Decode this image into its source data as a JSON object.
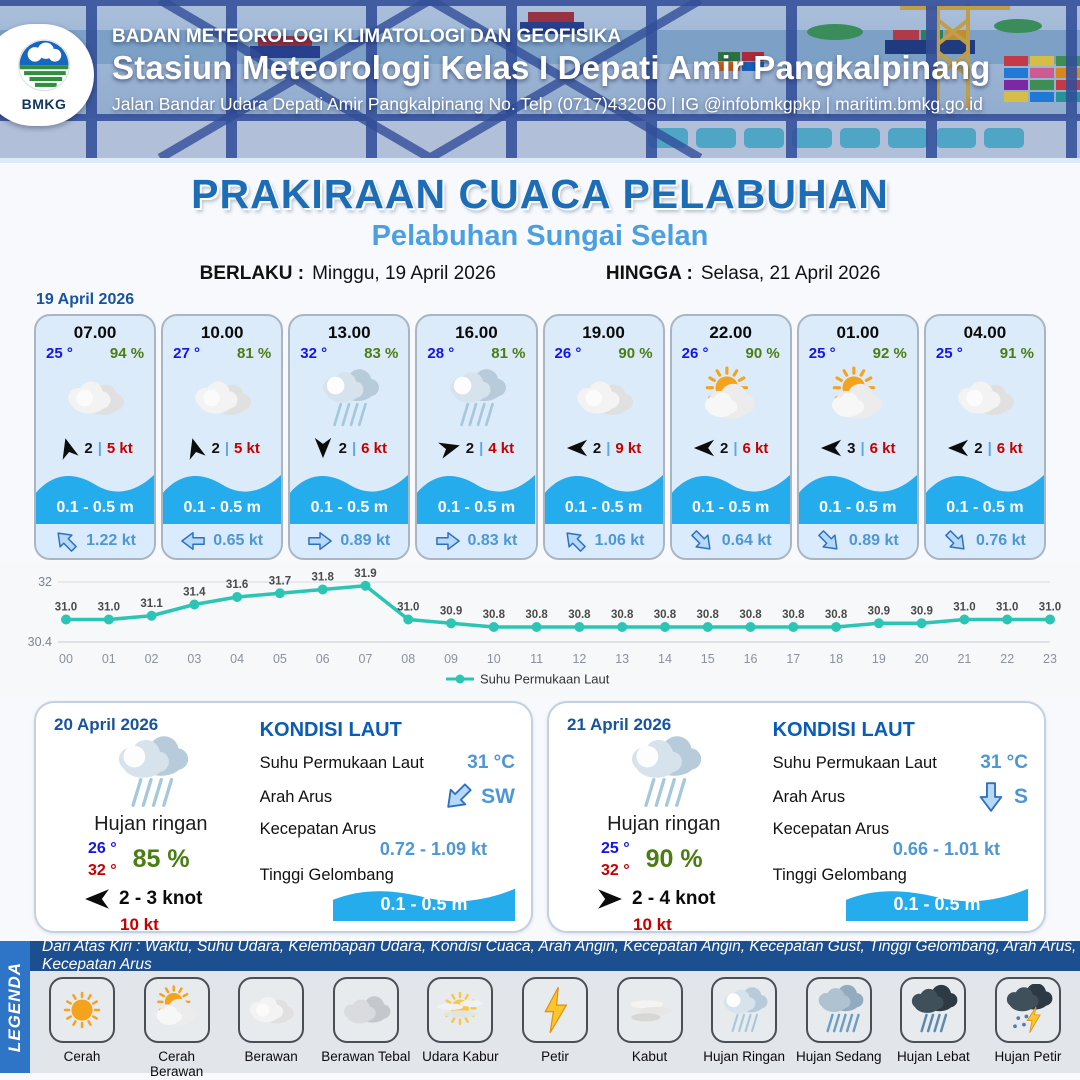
{
  "header": {
    "org": "BADAN METEOROLOGI KLIMATOLOGI DAN GEOFISIKA",
    "station": "Stasiun Meteorologi Kelas I Depati Amir Pangkalpinang",
    "address": "Jalan Bandar Udara Depati Amir Pangkalpinang No. Telp (0717)432060 | IG @infobmkgpkp | maritim.bmkg.go.id",
    "logo_text": "BMKG"
  },
  "title": {
    "main": "PRAKIRAAN CUACA PELABUHAN",
    "sub": "Pelabuhan Sungai Selan",
    "berlaku_label": "BERLAKU :",
    "berlaku_value": "Minggu, 19 April 2026",
    "hingga_label": "HINGGA :",
    "hingga_value": "Selasa, 21 April 2026"
  },
  "forecast": {
    "date_label": "19 April 2026",
    "cards": [
      {
        "time": "07.00",
        "temp": "25 °",
        "humidity": "94 %",
        "icon": "berawan",
        "wind_speed": "2",
        "gust": "5 kt",
        "wind_dir_deg": -105,
        "wave": "0.1 - 0.5 m",
        "current": "1.22 kt",
        "current_dir_deg": -135
      },
      {
        "time": "10.00",
        "temp": "27 °",
        "humidity": "81 %",
        "icon": "berawan",
        "wind_speed": "2",
        "gust": "5 kt",
        "wind_dir_deg": -105,
        "wave": "0.1 - 0.5 m",
        "current": "0.65 kt",
        "current_dir_deg": 180
      },
      {
        "time": "13.00",
        "temp": "32 °",
        "humidity": "83 %",
        "icon": "hujan-ringan",
        "wind_speed": "2",
        "gust": "6 kt",
        "wind_dir_deg": 90,
        "wave": "0.1 - 0.5 m",
        "current": "0.89 kt",
        "current_dir_deg": 0
      },
      {
        "time": "16.00",
        "temp": "28 °",
        "humidity": "81 %",
        "icon": "hujan-ringan",
        "wind_speed": "2",
        "gust": "4 kt",
        "wind_dir_deg": -15,
        "wave": "0.1 - 0.5 m",
        "current": "0.83 kt",
        "current_dir_deg": 0
      },
      {
        "time": "19.00",
        "temp": "26 °",
        "humidity": "90 %",
        "icon": "berawan",
        "wind_speed": "2",
        "gust": "9 kt",
        "wind_dir_deg": 180,
        "wave": "0.1 - 0.5 m",
        "current": "1.06 kt",
        "current_dir_deg": -135
      },
      {
        "time": "22.00",
        "temp": "26 °",
        "humidity": "90 %",
        "icon": "cerah-berawan",
        "wind_speed": "2",
        "gust": "6 kt",
        "wind_dir_deg": 180,
        "wave": "0.1 - 0.5 m",
        "current": "0.64 kt",
        "current_dir_deg": 45
      },
      {
        "time": "01.00",
        "temp": "25 °",
        "humidity": "92 %",
        "icon": "cerah-berawan",
        "wind_speed": "3",
        "gust": "6 kt",
        "wind_dir_deg": 180,
        "wave": "0.1 - 0.5 m",
        "current": "0.89 kt",
        "current_dir_deg": 45
      },
      {
        "time": "04.00",
        "temp": "25 °",
        "humidity": "91 %",
        "icon": "berawan",
        "wind_speed": "2",
        "gust": "6 kt",
        "wind_dir_deg": 180,
        "wave": "0.1 - 0.5 m",
        "current": "0.76 kt",
        "current_dir_deg": 45
      }
    ]
  },
  "chart_data": {
    "type": "line",
    "x": [
      "00",
      "01",
      "02",
      "03",
      "04",
      "05",
      "06",
      "07",
      "08",
      "09",
      "10",
      "11",
      "12",
      "13",
      "14",
      "15",
      "16",
      "17",
      "18",
      "19",
      "20",
      "21",
      "22",
      "23"
    ],
    "series": [
      {
        "name": "Suhu Permukaan Laut",
        "values": [
          31.0,
          31.0,
          31.1,
          31.4,
          31.6,
          31.7,
          31.8,
          31.9,
          31.0,
          30.9,
          30.8,
          30.8,
          30.8,
          30.8,
          30.8,
          30.8,
          30.8,
          30.8,
          30.8,
          30.9,
          30.9,
          31.0,
          31.0,
          31.0
        ]
      }
    ],
    "ylim": [
      30.4,
      32
    ],
    "yticks": [
      30.4,
      32
    ],
    "line_color": "#2cc5b4",
    "grid": true,
    "legend_position": "bottom"
  },
  "day_panels": [
    {
      "date": "20 April 2026",
      "icon": "hujan-ringan",
      "condition": "Hujan ringan",
      "temp_min": "26 °",
      "temp_max": "32 °",
      "humidity": "85 %",
      "wind_range": "2  - 3 knot",
      "wind_dir_deg": 180,
      "gust": "10 kt",
      "sea": {
        "heading": "KONDISI LAUT",
        "sst_label": "Suhu Permukaan Laut",
        "sst": "31 °C",
        "current_dir_label": "Arah Arus",
        "current_dir": "SW",
        "current_dir_deg": 135,
        "current_speed_label": "Kecepatan Arus",
        "current_speed": "0.72  - 1.09 kt",
        "wave_label": "Tinggi Gelombang",
        "wave": "0.1 - 0.5 m"
      }
    },
    {
      "date": "21 April 2026",
      "icon": "hujan-ringan",
      "condition": "Hujan ringan",
      "temp_min": "25 °",
      "temp_max": "32 °",
      "humidity": "90 %",
      "wind_range": "2  - 4 knot",
      "wind_dir_deg": 0,
      "gust": "10 kt",
      "sea": {
        "heading": "KONDISI LAUT",
        "sst_label": "Suhu Permukaan Laut",
        "sst": "31 °C",
        "current_dir_label": "Arah Arus",
        "current_dir": "S",
        "current_dir_deg": 90,
        "current_speed_label": "Kecepatan Arus",
        "current_speed": "0.66  - 1.01 kt",
        "wave_label": "Tinggi Gelombang",
        "wave": "0.1 - 0.5 m"
      }
    }
  ],
  "legend": {
    "band_label": "LEGENDA",
    "note": "Dari Atas Kiri : Waktu, Suhu Udara, Kelembapan Udara, Kondisi Cuaca, Arah Angin, Kecepatan Angin, Kecepatan Gust, Tinggi Gelombang, Arah Arus, Kecepatan Arus",
    "items": [
      {
        "icon": "cerah",
        "label": "Cerah"
      },
      {
        "icon": "cerah-berawan",
        "label": "Cerah Berawan"
      },
      {
        "icon": "berawan",
        "label": "Berawan"
      },
      {
        "icon": "berawan-tebal",
        "label": "Berawan Tebal"
      },
      {
        "icon": "udara-kabur",
        "label": "Udara Kabur"
      },
      {
        "icon": "petir",
        "label": "Petir"
      },
      {
        "icon": "kabut",
        "label": "Kabut"
      },
      {
        "icon": "hujan-ringan",
        "label": "Hujan Ringan"
      },
      {
        "icon": "hujan-sedang",
        "label": "Hujan Sedang"
      },
      {
        "icon": "hujan-lebat",
        "label": "Hujan Lebat"
      },
      {
        "icon": "hujan-petir",
        "label": "Hujan Petir"
      }
    ]
  },
  "colors": {
    "title_blue": "#1c6cb6",
    "subtitle_blue": "#4da0e0",
    "date_blue": "#17539f",
    "temp_blue": "#1414e6",
    "humidity_green": "#4a7d12",
    "gust_red": "#c40000",
    "wave_blue": "#25acec",
    "current_blue": "#4e97d5",
    "chart_teal": "#2cc5b4",
    "legend_band_blue": "#2e75c8",
    "legend_note_blue": "#1c4f8f"
  }
}
